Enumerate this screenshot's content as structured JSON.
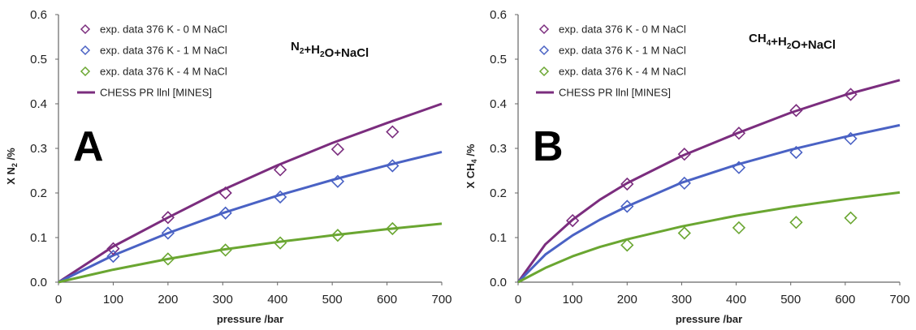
{
  "chart_data": [
    {
      "panel_label": "A",
      "type": "scatter",
      "system_label": {
        "parts": [
          [
            "N",
            "2",
            "+H"
          ],
          [
            "2",
            "O+NaCl",
            ""
          ]
        ]
      },
      "system_label_text": "N2+H2O+NaCl",
      "xlabel": "pressure /bar",
      "ylabel": {
        "main": "X N",
        "sub": "2",
        "tail": " /%"
      },
      "xlim": [
        0,
        700
      ],
      "ylim": [
        0,
        0.6
      ],
      "xticks": [
        "0",
        "100",
        "200",
        "300",
        "400",
        "500",
        "600",
        "700"
      ],
      "yticks": [
        "0.0",
        "0.1",
        "0.2",
        "0.3",
        "0.4",
        "0.5",
        "0.6"
      ],
      "grid": false,
      "legend_position": "top-left",
      "series": [
        {
          "name": "exp. data 376 K - 0 M NaCl",
          "kind": "marker",
          "color": "#7b2d7e",
          "x": [
            100,
            200,
            305,
            405,
            510,
            610
          ],
          "y": [
            0.075,
            0.145,
            0.2,
            0.252,
            0.298,
            0.337
          ]
        },
        {
          "name": "exp. data 376 K - 1 M NaCl",
          "kind": "marker",
          "color": "#4a62c4",
          "x": [
            100,
            200,
            305,
            405,
            510,
            610
          ],
          "y": [
            0.058,
            0.11,
            0.155,
            0.191,
            0.226,
            0.261
          ]
        },
        {
          "name": "exp. data 376 K - 4 M NaCl",
          "kind": "marker",
          "color": "#6aa631",
          "x": [
            200,
            305,
            405,
            510,
            610
          ],
          "y": [
            0.052,
            0.072,
            0.088,
            0.105,
            0.12
          ]
        },
        {
          "name": "CHESS PR llnl [MINES]",
          "kind": "line",
          "color": "#7b2d7e",
          "x": [
            0,
            100,
            200,
            300,
            400,
            500,
            600,
            700
          ],
          "y": [
            0.0,
            0.08,
            0.145,
            0.207,
            0.262,
            0.312,
            0.357,
            0.4
          ]
        },
        {
          "kind": "line",
          "color": "#4a62c4",
          "x": [
            0,
            100,
            200,
            300,
            400,
            500,
            600,
            700
          ],
          "y": [
            0.0,
            0.06,
            0.11,
            0.155,
            0.194,
            0.229,
            0.262,
            0.292
          ]
        },
        {
          "kind": "line",
          "color": "#6aa631",
          "x": [
            0,
            100,
            200,
            300,
            400,
            500,
            600,
            700
          ],
          "y": [
            0.0,
            0.028,
            0.052,
            0.073,
            0.09,
            0.105,
            0.119,
            0.131
          ]
        }
      ]
    },
    {
      "panel_label": "B",
      "type": "scatter",
      "system_label_text": "CH4+H2O+NaCl",
      "xlabel": "pressure /bar",
      "ylabel": {
        "main": "X CH",
        "sub": "4",
        "tail": " /%"
      },
      "xlim": [
        0,
        700
      ],
      "ylim": [
        0,
        0.6
      ],
      "xticks": [
        "0",
        "100",
        "200",
        "300",
        "400",
        "500",
        "600",
        "700"
      ],
      "yticks": [
        "0.0",
        "0.1",
        "0.2",
        "0.3",
        "0.4",
        "0.5",
        "0.6"
      ],
      "grid": false,
      "legend_position": "top-left",
      "series": [
        {
          "name": "exp. data 376 K - 0 M NaCl",
          "kind": "marker",
          "color": "#7b2d7e",
          "x": [
            100,
            200,
            305,
            405,
            510,
            610
          ],
          "y": [
            0.138,
            0.22,
            0.287,
            0.334,
            0.385,
            0.421
          ]
        },
        {
          "name": "exp. data 376 K - 1 M NaCl",
          "kind": "marker",
          "color": "#4a62c4",
          "x": [
            200,
            305,
            405,
            510,
            610
          ],
          "y": [
            0.17,
            0.222,
            0.257,
            0.291,
            0.322
          ]
        },
        {
          "name": "exp. data 376 K - 4 M NaCl",
          "kind": "marker",
          "color": "#6aa631",
          "x": [
            200,
            305,
            405,
            510,
            610
          ],
          "y": [
            0.083,
            0.11,
            0.122,
            0.134,
            0.144
          ]
        },
        {
          "name": "CHESS PR llnl [MINES]",
          "kind": "line",
          "color": "#7b2d7e",
          "x": [
            0,
            50,
            100,
            150,
            200,
            300,
            400,
            500,
            600,
            700
          ],
          "y": [
            0.0,
            0.085,
            0.14,
            0.185,
            0.222,
            0.283,
            0.333,
            0.38,
            0.42,
            0.453
          ]
        },
        {
          "kind": "line",
          "color": "#4a62c4",
          "x": [
            0,
            50,
            100,
            150,
            200,
            300,
            400,
            500,
            600,
            700
          ],
          "y": [
            0.0,
            0.062,
            0.105,
            0.14,
            0.17,
            0.223,
            0.263,
            0.297,
            0.326,
            0.352
          ]
        },
        {
          "kind": "line",
          "color": "#6aa631",
          "x": [
            0,
            50,
            100,
            150,
            200,
            300,
            400,
            500,
            600,
            700
          ],
          "y": [
            0.0,
            0.032,
            0.058,
            0.079,
            0.096,
            0.125,
            0.149,
            0.169,
            0.186,
            0.201
          ]
        }
      ]
    }
  ]
}
